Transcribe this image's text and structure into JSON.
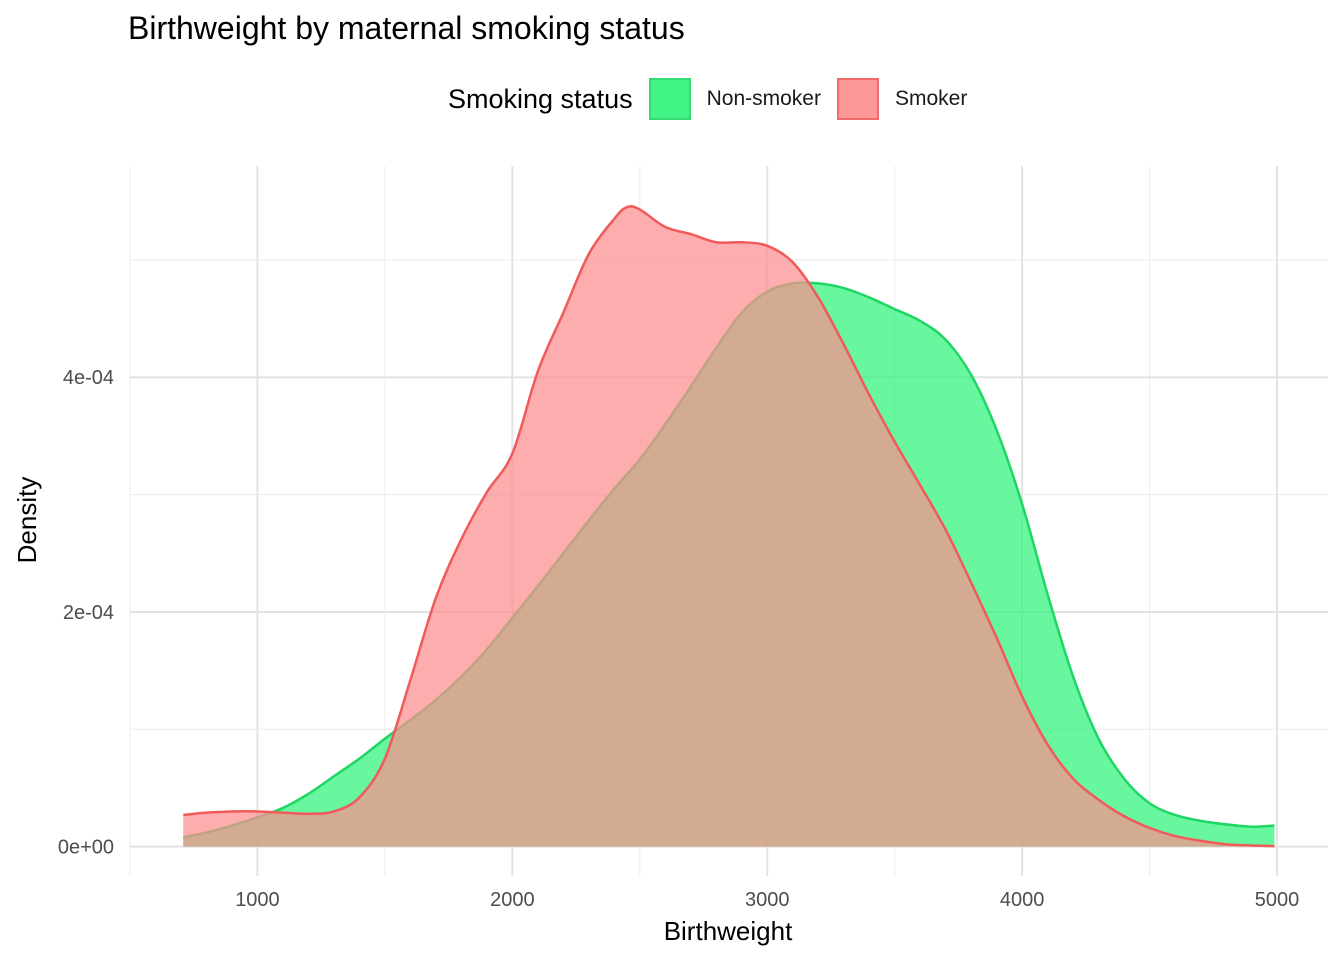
{
  "chart_data": {
    "type": "area",
    "title": "Birthweight by maternal smoking status",
    "xlabel": "Birthweight",
    "ylabel": "Density",
    "xlim": [
      500,
      5200
    ],
    "ylim": [
      -2.5e-05,
      0.00058
    ],
    "xticks": [
      1000,
      2000,
      3000,
      4000,
      5000
    ],
    "xtick_labels": [
      "1000",
      "2000",
      "3000",
      "4000",
      "5000"
    ],
    "yticks": [
      0,
      0.0002,
      0.0004
    ],
    "ytick_labels": [
      "0e+00",
      "2e-04",
      "4e-04"
    ],
    "grid": true,
    "legend": {
      "title": "Smoking status",
      "position": "top"
    },
    "series": [
      {
        "name": "Non-smoker",
        "color": "#1fd664",
        "fill": "#2ef27a",
        "x": [
          709,
          800,
          900,
          1000,
          1100,
          1200,
          1300,
          1400,
          1500,
          1600,
          1700,
          1800,
          1900,
          2000,
          2100,
          2200,
          2300,
          2400,
          2500,
          2600,
          2700,
          2800,
          2900,
          3000,
          3100,
          3200,
          3300,
          3400,
          3500,
          3600,
          3700,
          3800,
          3900,
          4000,
          4100,
          4200,
          4300,
          4400,
          4500,
          4600,
          4700,
          4800,
          4900,
          4990
        ],
        "values": [
          8e-06,
          1.2e-05,
          1.8e-05,
          2.5e-05,
          3.3e-05,
          4.5e-05,
          6e-05,
          7.5e-05,
          9.2e-05,
          0.000108,
          0.000125,
          0.000145,
          0.000168,
          0.000195,
          0.000222,
          0.00025,
          0.000278,
          0.000305,
          0.00033,
          0.00036,
          0.000392,
          0.000425,
          0.000455,
          0.000473,
          0.00048,
          0.00048,
          0.000476,
          0.000468,
          0.000458,
          0.000448,
          0.000432,
          0.000402,
          0.000355,
          0.000292,
          0.000215,
          0.000145,
          9.2e-05,
          5.8e-05,
          3.7e-05,
          2.7e-05,
          2.2e-05,
          1.9e-05,
          1.7e-05,
          1.8e-05
        ]
      },
      {
        "name": "Smoker",
        "color": "#f05a5a",
        "fill": "#fc8d8d",
        "x": [
          709,
          800,
          900,
          1000,
          1100,
          1200,
          1300,
          1400,
          1500,
          1600,
          1700,
          1800,
          1900,
          2000,
          2100,
          2200,
          2300,
          2400,
          2450,
          2500,
          2600,
          2700,
          2800,
          2900,
          3000,
          3100,
          3200,
          3300,
          3400,
          3500,
          3600,
          3700,
          3800,
          3900,
          4000,
          4100,
          4200,
          4300,
          4400,
          4500,
          4600,
          4700,
          4800,
          4900,
          4990
        ],
        "values": [
          2.7e-05,
          2.9e-05,
          3e-05,
          3e-05,
          2.9e-05,
          2.8e-05,
          3e-05,
          4.2e-05,
          7.5e-05,
          0.000142,
          0.000212,
          0.000262,
          0.000302,
          0.000335,
          0.000405,
          0.000455,
          0.000505,
          0.000535,
          0.000545,
          0.000543,
          0.000528,
          0.000522,
          0.000515,
          0.000515,
          0.000512,
          0.000498,
          0.000468,
          0.000428,
          0.000385,
          0.000345,
          0.000308,
          0.00027,
          0.000225,
          0.000178,
          0.000128,
          8.7e-05,
          5.8e-05,
          4e-05,
          2.6e-05,
          1.6e-05,
          9e-06,
          5e-06,
          2e-06,
          1e-06,
          5e-07
        ]
      }
    ]
  }
}
